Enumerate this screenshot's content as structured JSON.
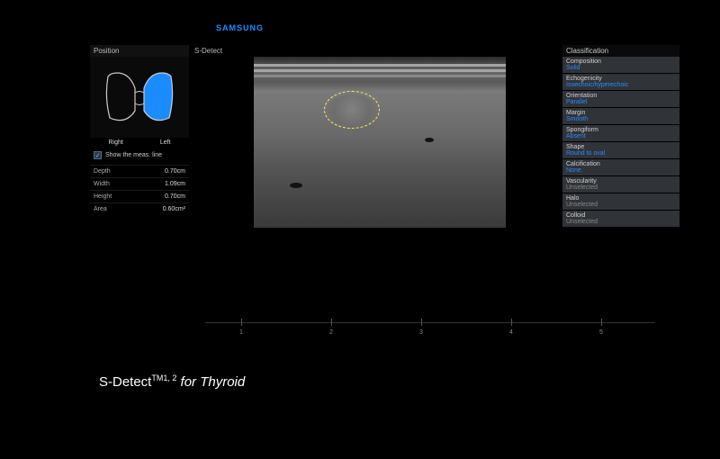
{
  "brand": "SAMSUNG",
  "caption": {
    "product": "S-Detect",
    "trademark": "TM1, 2",
    "suffix": " for Thyroid"
  },
  "left": {
    "title": "Position",
    "lobes": {
      "right": "Right",
      "left": "Left"
    },
    "thyroid": {
      "outline": "#cccccc",
      "fill_left": "#1a8cff",
      "bg": "#0a0a0a"
    },
    "checkbox": {
      "checked": true,
      "label": "Show the meas. line"
    },
    "measurements": [
      {
        "label": "Depth",
        "value": "0.70cm"
      },
      {
        "label": "Width",
        "value": "1.09cm"
      },
      {
        "label": "Height",
        "value": "0.70cm"
      },
      {
        "label": "Area",
        "value": "0.60cm²"
      }
    ]
  },
  "center": {
    "title": "S-Detect",
    "ruler_ticks": [
      "1",
      "2",
      "3",
      "4",
      "5"
    ],
    "nodule_outline_color": "#ffee55"
  },
  "classification": {
    "title": "Classification",
    "items": [
      {
        "cat": "Composition",
        "val": "Solid",
        "muted": false
      },
      {
        "cat": "Echogenicity",
        "val": "Isoechoic/hyperechoic",
        "muted": false
      },
      {
        "cat": "Orientation",
        "val": "Parallel",
        "muted": false
      },
      {
        "cat": "Margin",
        "val": "Smooth",
        "muted": false
      },
      {
        "cat": "Spongiform",
        "val": "Absent",
        "muted": false
      },
      {
        "cat": "Shape",
        "val": "Round to oval",
        "muted": false
      },
      {
        "cat": "Calcification",
        "val": "None",
        "muted": false
      },
      {
        "cat": "Vascularity",
        "val": "Unselected",
        "muted": true
      },
      {
        "cat": "Halo",
        "val": "Unselected",
        "muted": true
      },
      {
        "cat": "Colloid",
        "val": "Unselected",
        "muted": true
      }
    ]
  },
  "colors": {
    "accent": "#1a8cff",
    "bg": "#000000",
    "panel": "#303338",
    "text": "#cccccc"
  }
}
